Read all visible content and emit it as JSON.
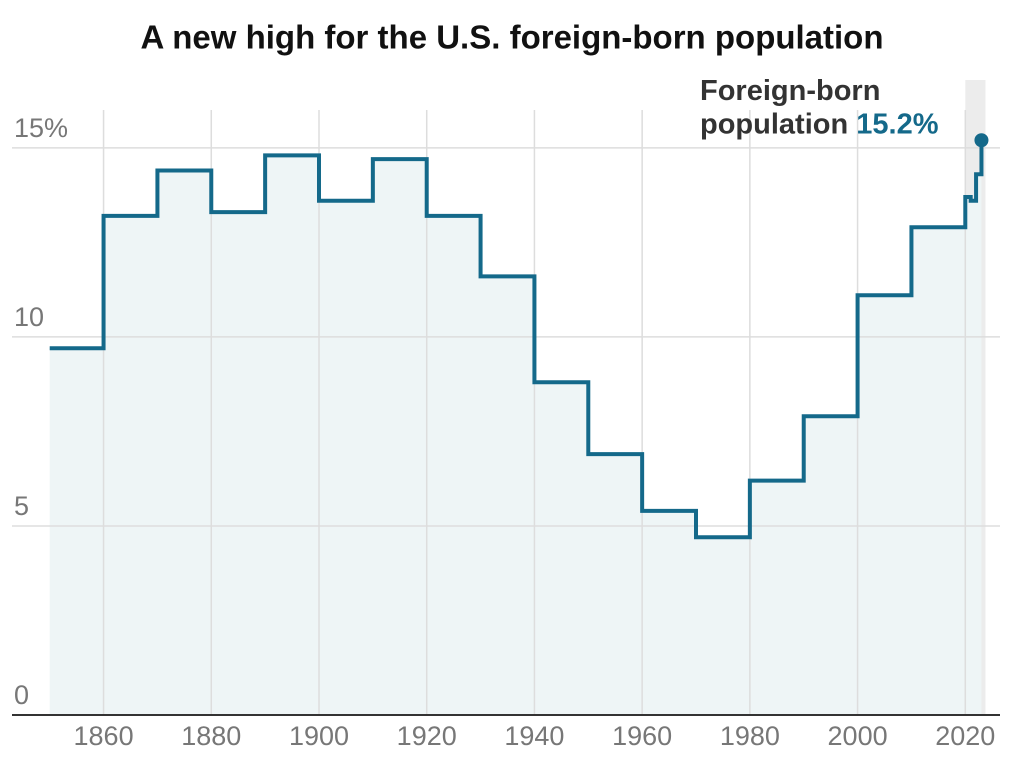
{
  "chart_data": {
    "type": "step",
    "title": "A new high for the U.S. foreign-born population",
    "x": [
      1850,
      1860,
      1870,
      1880,
      1890,
      1900,
      1910,
      1920,
      1930,
      1940,
      1950,
      1960,
      1970,
      1980,
      1990,
      2000,
      2010,
      2020,
      2021,
      2022,
      2023
    ],
    "values": [
      9.7,
      13.2,
      14.4,
      13.3,
      14.8,
      13.6,
      14.7,
      13.2,
      11.6,
      8.8,
      6.9,
      5.4,
      4.7,
      6.2,
      7.9,
      11.1,
      12.9,
      13.7,
      13.6,
      14.3,
      15.2
    ],
    "value_labels": [
      null,
      null,
      null,
      null,
      null,
      null,
      null,
      null,
      null,
      null,
      null,
      null,
      null,
      null,
      null,
      null,
      null,
      null,
      null,
      null,
      "15.2%"
    ],
    "annotation_lines": [
      "Foreign-born",
      "population"
    ],
    "color": "#14698a",
    "xlim": [
      1843,
      2027
    ],
    "ylim": [
      0,
      16
    ],
    "xticks": [
      1860,
      1880,
      1900,
      1920,
      1940,
      1960,
      1980,
      2000,
      2020
    ],
    "yticks": [
      0,
      5,
      10,
      {
        "value": 15,
        "label": "15%"
      }
    ],
    "grid": true
  }
}
